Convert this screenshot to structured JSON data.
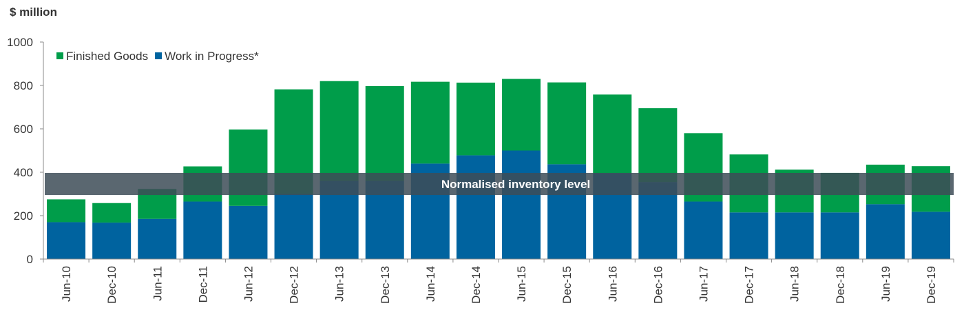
{
  "chart_data": {
    "type": "bar",
    "stacked": true,
    "unit_label": "$ million",
    "categories": [
      "Jun-10",
      "Dec-10",
      "Jun-11",
      "Dec-11",
      "Jun-12",
      "Dec-12",
      "Jun-13",
      "Dec-13",
      "Jun-14",
      "Dec-14",
      "Jun-15",
      "Dec-15",
      "Jun-16",
      "Dec-16",
      "Jun-17",
      "Dec-17",
      "Jun-18",
      "Dec-18",
      "Jun-19",
      "Dec-19"
    ],
    "series": [
      {
        "name": "Work in Progress*",
        "color": "#00639f",
        "values": [
          170,
          168,
          185,
          265,
          245,
          300,
          360,
          360,
          440,
          478,
          500,
          437,
          395,
          355,
          265,
          215,
          215,
          215,
          253,
          218
        ]
      },
      {
        "name": "Finished Goods",
        "color": "#009d4a",
        "values": [
          105,
          90,
          138,
          162,
          352,
          482,
          460,
          437,
          377,
          335,
          330,
          377,
          363,
          340,
          315,
          267,
          197,
          182,
          182,
          210
        ]
      }
    ],
    "legend": [
      "Finished Goods",
      "Work in Progress*"
    ],
    "legend_position": "top-left",
    "yticks": [
      0,
      200,
      400,
      600,
      800,
      1000
    ],
    "ylim": [
      0,
      1000
    ],
    "band": {
      "label": "Normalised inventory level",
      "y_from": 295,
      "y_to": 397,
      "color": "#3d4c57"
    },
    "grid": false
  }
}
